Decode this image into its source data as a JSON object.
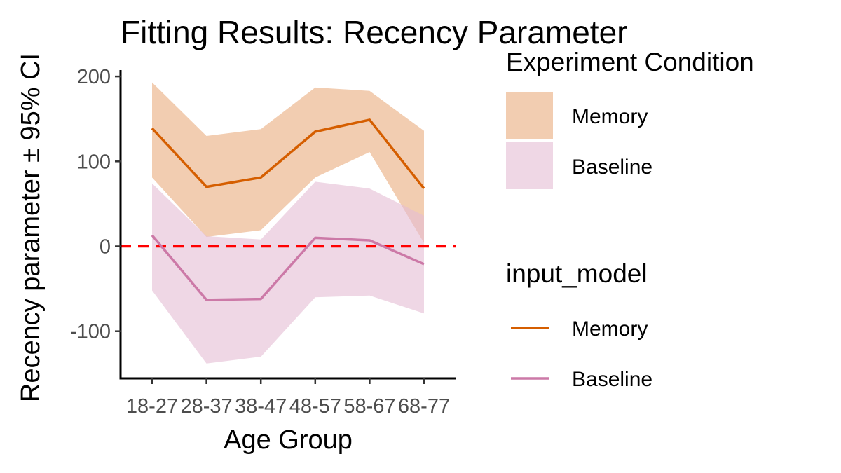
{
  "chart_data": {
    "type": "line",
    "title": "Fitting Results: Recency Parameter",
    "xlabel": "Age Group",
    "ylabel": "Recency parameter ± 95% CI",
    "categories": [
      "18-27",
      "28-37",
      "38-47",
      "48-57",
      "58-67",
      "68-77"
    ],
    "ylim": [
      -155,
      205
    ],
    "yticks": [
      -100,
      0,
      100,
      200
    ],
    "yticklabels": [
      "-100",
      "0",
      "100",
      "200"
    ],
    "grid": false,
    "reference_line": {
      "y": 0,
      "style": "dashed",
      "color": "#ff0000"
    },
    "series": [
      {
        "name": "Memory",
        "values": [
          139,
          70,
          81,
          135,
          149,
          68
        ],
        "lower": [
          81,
          11,
          19,
          81,
          111,
          4
        ],
        "upper": [
          193,
          130,
          138,
          187,
          183,
          136
        ],
        "line_color": "#d55e00",
        "fill_color": "#e9ac7d"
      },
      {
        "name": "Baseline",
        "values": [
          13,
          -63,
          -62,
          10,
          7,
          -21
        ],
        "lower": [
          -52,
          -138,
          -130,
          -60,
          -58,
          -79
        ],
        "upper": [
          74,
          12,
          8,
          76,
          68,
          36
        ],
        "line_color": "#cc79a7",
        "fill_color": "#e5bcd3"
      }
    ],
    "legends": [
      {
        "title": "Experiment Condition",
        "kind": "fill",
        "entries": [
          "Memory",
          "Baseline"
        ]
      },
      {
        "title": "input_model",
        "kind": "line",
        "entries": [
          "Memory",
          "Baseline"
        ]
      }
    ],
    "legend_position": "right"
  }
}
